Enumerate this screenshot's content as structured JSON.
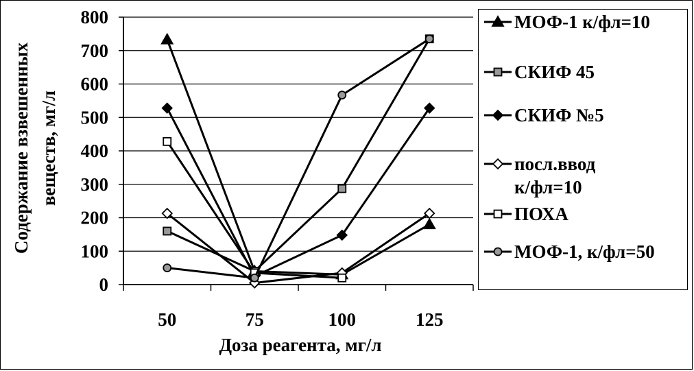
{
  "chart_data": {
    "type": "line",
    "title": "",
    "xlabel": "Доза реагента, мг/л",
    "ylabel_line1": "Содержание взвешенных",
    "ylabel_line2": "веществ, мг/л",
    "categories": [
      "50",
      "75",
      "100",
      "125"
    ],
    "ylim": [
      0,
      800
    ],
    "yticks": [
      "0",
      "100",
      "200",
      "300",
      "400",
      "500",
      "600",
      "700",
      "800"
    ],
    "grid": "horizontal",
    "legend_position": "right",
    "series": [
      {
        "name": "МОФ-1 к/фл=10",
        "marker": "triangle",
        "fill": "#000000",
        "values": [
          733,
          40,
          30,
          180
        ]
      },
      {
        "name": "СКИФ 45",
        "marker": "square",
        "fill": "#999999",
        "values": [
          160,
          40,
          287,
          735
        ]
      },
      {
        "name": "СКИФ №5",
        "marker": "diamond",
        "fill": "#000000",
        "values": [
          528,
          25,
          148,
          528
        ]
      },
      {
        "name": "посл.ввод\nк/фл=10",
        "marker": "diamond",
        "fill": "#ffffff",
        "values": [
          213,
          5,
          35,
          213
        ]
      },
      {
        "name": "ПОХА",
        "marker": "square",
        "fill": "#ffffff",
        "values": [
          428,
          35,
          20,
          null
        ]
      },
      {
        "name": "МОФ-1, к/фл=50",
        "marker": "circle",
        "fill": "#999999",
        "values": [
          50,
          20,
          567,
          735
        ]
      }
    ]
  }
}
